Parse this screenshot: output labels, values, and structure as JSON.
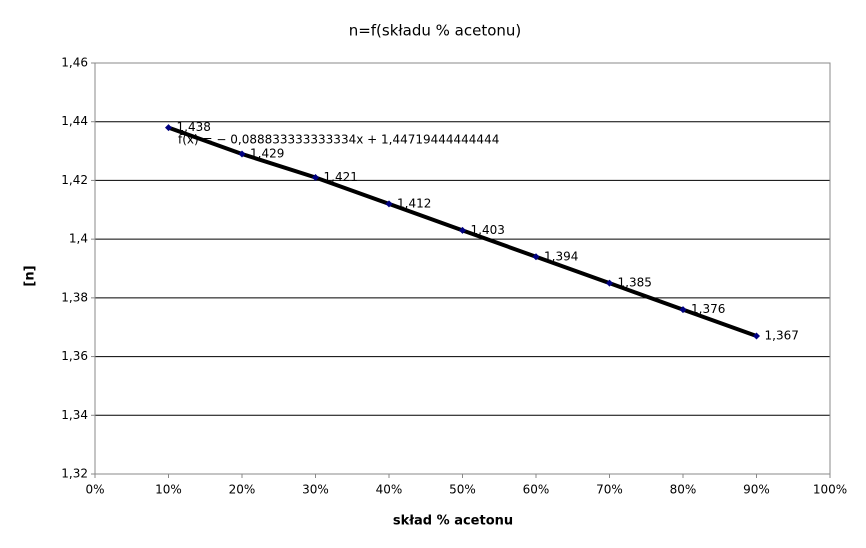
{
  "chart_data": {
    "type": "scatter",
    "title": "n=f(składu % acetonu)",
    "x_label": "skład % acetonu",
    "y_label": "[n]",
    "annotation": "f(x) = − 0,088833333333334x + 1,44719444444444",
    "series": [
      {
        "name": "n",
        "color": "#000080",
        "x": [
          10,
          20,
          30,
          40,
          50,
          60,
          70,
          80,
          90
        ],
        "values": [
          1.438,
          1.429,
          1.421,
          1.412,
          1.403,
          1.394,
          1.385,
          1.376,
          1.367
        ],
        "value_labels": [
          "1,438",
          "1,429",
          "1,421",
          "1,412",
          "1,403",
          "1,394",
          "1,385",
          "1,376",
          "1,367"
        ]
      }
    ],
    "line_color": "#000000",
    "xlim": [
      0,
      100
    ],
    "xticks": [
      {
        "value": 0,
        "label": "0%"
      },
      {
        "value": 10,
        "label": "10%"
      },
      {
        "value": 20,
        "label": "20%"
      },
      {
        "value": 30,
        "label": "30%"
      },
      {
        "value": 40,
        "label": "40%"
      },
      {
        "value": 50,
        "label": "50%"
      },
      {
        "value": 60,
        "label": "60%"
      },
      {
        "value": 70,
        "label": "70%"
      },
      {
        "value": 80,
        "label": "80%"
      },
      {
        "value": 90,
        "label": "90%"
      },
      {
        "value": 100,
        "label": "100%"
      }
    ],
    "ylim": [
      1.32,
      1.46
    ],
    "yticks": [
      {
        "value": 1.32,
        "label": "1,32"
      },
      {
        "value": 1.34,
        "label": "1,34"
      },
      {
        "value": 1.36,
        "label": "1,36"
      },
      {
        "value": 1.38,
        "label": "1,38"
      },
      {
        "value": 1.4,
        "label": "1,4"
      },
      {
        "value": 1.42,
        "label": "1,42"
      },
      {
        "value": 1.44,
        "label": "1,44"
      },
      {
        "value": 1.46,
        "label": "1,46"
      }
    ],
    "grid": true
  }
}
